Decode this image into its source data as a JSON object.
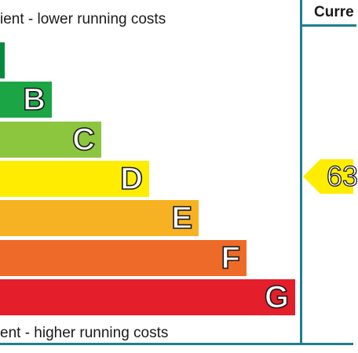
{
  "captions": {
    "top": "ient - lower running costs",
    "bottom": "ent - higher running costs"
  },
  "column_header": "Curre",
  "bands": [
    {
      "letter": "",
      "color": "#008b3f",
      "rating_fraction": 0.013
    },
    {
      "letter": "B",
      "color": "#1ca544",
      "rating_fraction": 0.147
    },
    {
      "letter": "C",
      "color": "#8cc63f",
      "rating_fraction": 0.287
    },
    {
      "letter": "D",
      "color": "#ffed00",
      "rating_fraction": 0.422
    },
    {
      "letter": "E",
      "color": "#f7b223",
      "rating_fraction": 0.562
    },
    {
      "letter": "F",
      "color": "#ee6a28",
      "rating_fraction": 0.698
    },
    {
      "letter": "G",
      "color": "#e41e2b",
      "rating_fraction": 0.835
    }
  ],
  "current_rating": {
    "value": "63",
    "band": "D",
    "color": "#ffed00"
  },
  "accent_color": "#1f7e8c"
}
